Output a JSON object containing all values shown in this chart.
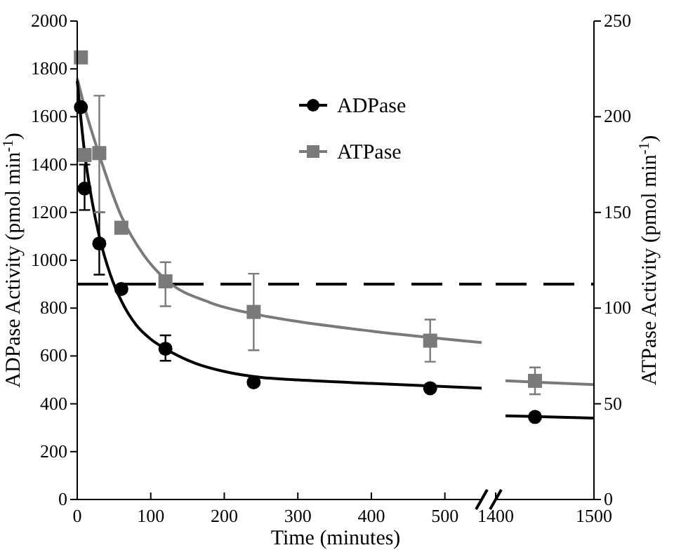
{
  "chart_data": [
    {
      "type": "scatter",
      "xlabel": "Time (minutes)",
      "ylabel": "ADPase Activity (pmol min$^{-1}$)",
      "xlim": [
        0,
        550
      ],
      "xticks": [
        0,
        100,
        200,
        300,
        400,
        500
      ],
      "ylim": [
        0,
        2000
      ],
      "yticks": [
        0,
        200,
        400,
        600,
        800,
        1000,
        1200,
        1400,
        1600,
        1800,
        2000
      ],
      "y2lim": [
        0,
        250
      ],
      "legend": "top right",
      "ref_lines": [
        {
          "axis": "y",
          "value": 900,
          "line_style": "dashed",
          "color": "#000000"
        }
      ],
      "series": [
        {
          "name": "ADPase",
          "marker": "circle",
          "color": "#000000",
          "x": [
            5,
            10,
            30,
            60,
            120,
            240,
            480
          ],
          "values": [
            1640,
            1300,
            1070,
            880,
            630,
            490,
            465
          ],
          "errors": [
            null,
            [
              1210,
              1400
            ],
            [
              940,
              1200
            ],
            null,
            [
              580,
              686
            ],
            null,
            null
          ]
        },
        {
          "name": "ATPase",
          "marker": "square",
          "axis": "y2",
          "color": "#7a7a7a",
          "x": [
            5,
            10,
            30,
            60,
            120,
            240,
            480
          ],
          "values": [
            231,
            180,
            181,
            142,
            114,
            98,
            83
          ],
          "errors": [
            null,
            null,
            [
              150,
              211
            ],
            null,
            [
              101,
              124
            ],
            [
              78,
              118
            ],
            [
              72,
              94
            ]
          ]
        },
        {
          "type": "line",
          "color": "#000000",
          "x": [
            0,
            10,
            20,
            30,
            45,
            60,
            80,
            100,
            120,
            160,
            200,
            250,
            300,
            400,
            550
          ],
          "values": [
            1750,
            1450,
            1250,
            1100,
            940,
            830,
            730,
            670,
            630,
            570,
            535,
            510,
            500,
            485,
            465
          ]
        },
        {
          "type": "line",
          "axis": "y2",
          "color": "#7a7a7a",
          "x": [
            0,
            10,
            30,
            60,
            90,
            120,
            180,
            240,
            300,
            400,
            550
          ],
          "values": [
            220,
            205,
            180,
            148,
            128,
            115,
            103,
            97,
            93,
            88,
            82
          ]
        }
      ]
    },
    {
      "type": "scatter",
      "y2label": "ATPase Activity (pmol min$^{-1}$)",
      "xlim": [
        1400,
        1500
      ],
      "xticks": [
        1400,
        1500
      ],
      "ylim": [
        0,
        2000
      ],
      "y2lim": [
        0,
        250
      ],
      "y2ticks": [
        0,
        50,
        100,
        150,
        200,
        250
      ],
      "ref_lines": [
        {
          "axis": "y",
          "value": 900,
          "line_style": "dashed",
          "color": "#000000"
        }
      ],
      "series": [
        {
          "marker": "circle",
          "color": "#000000",
          "x": [
            1440
          ],
          "values": [
            345
          ]
        },
        {
          "marker": "square",
          "axis": "y2",
          "color": "#7a7a7a",
          "x": [
            1440
          ],
          "values": [
            62
          ],
          "errors": [
            [
              55,
              69
            ]
          ]
        },
        {
          "type": "line",
          "color": "#000000",
          "x": [
            1410,
            1500
          ],
          "values": [
            350,
            340
          ]
        },
        {
          "type": "line",
          "axis": "y2",
          "color": "#7a7a7a",
          "x": [
            1410,
            1500
          ],
          "values": [
            62,
            60
          ]
        }
      ]
    }
  ]
}
